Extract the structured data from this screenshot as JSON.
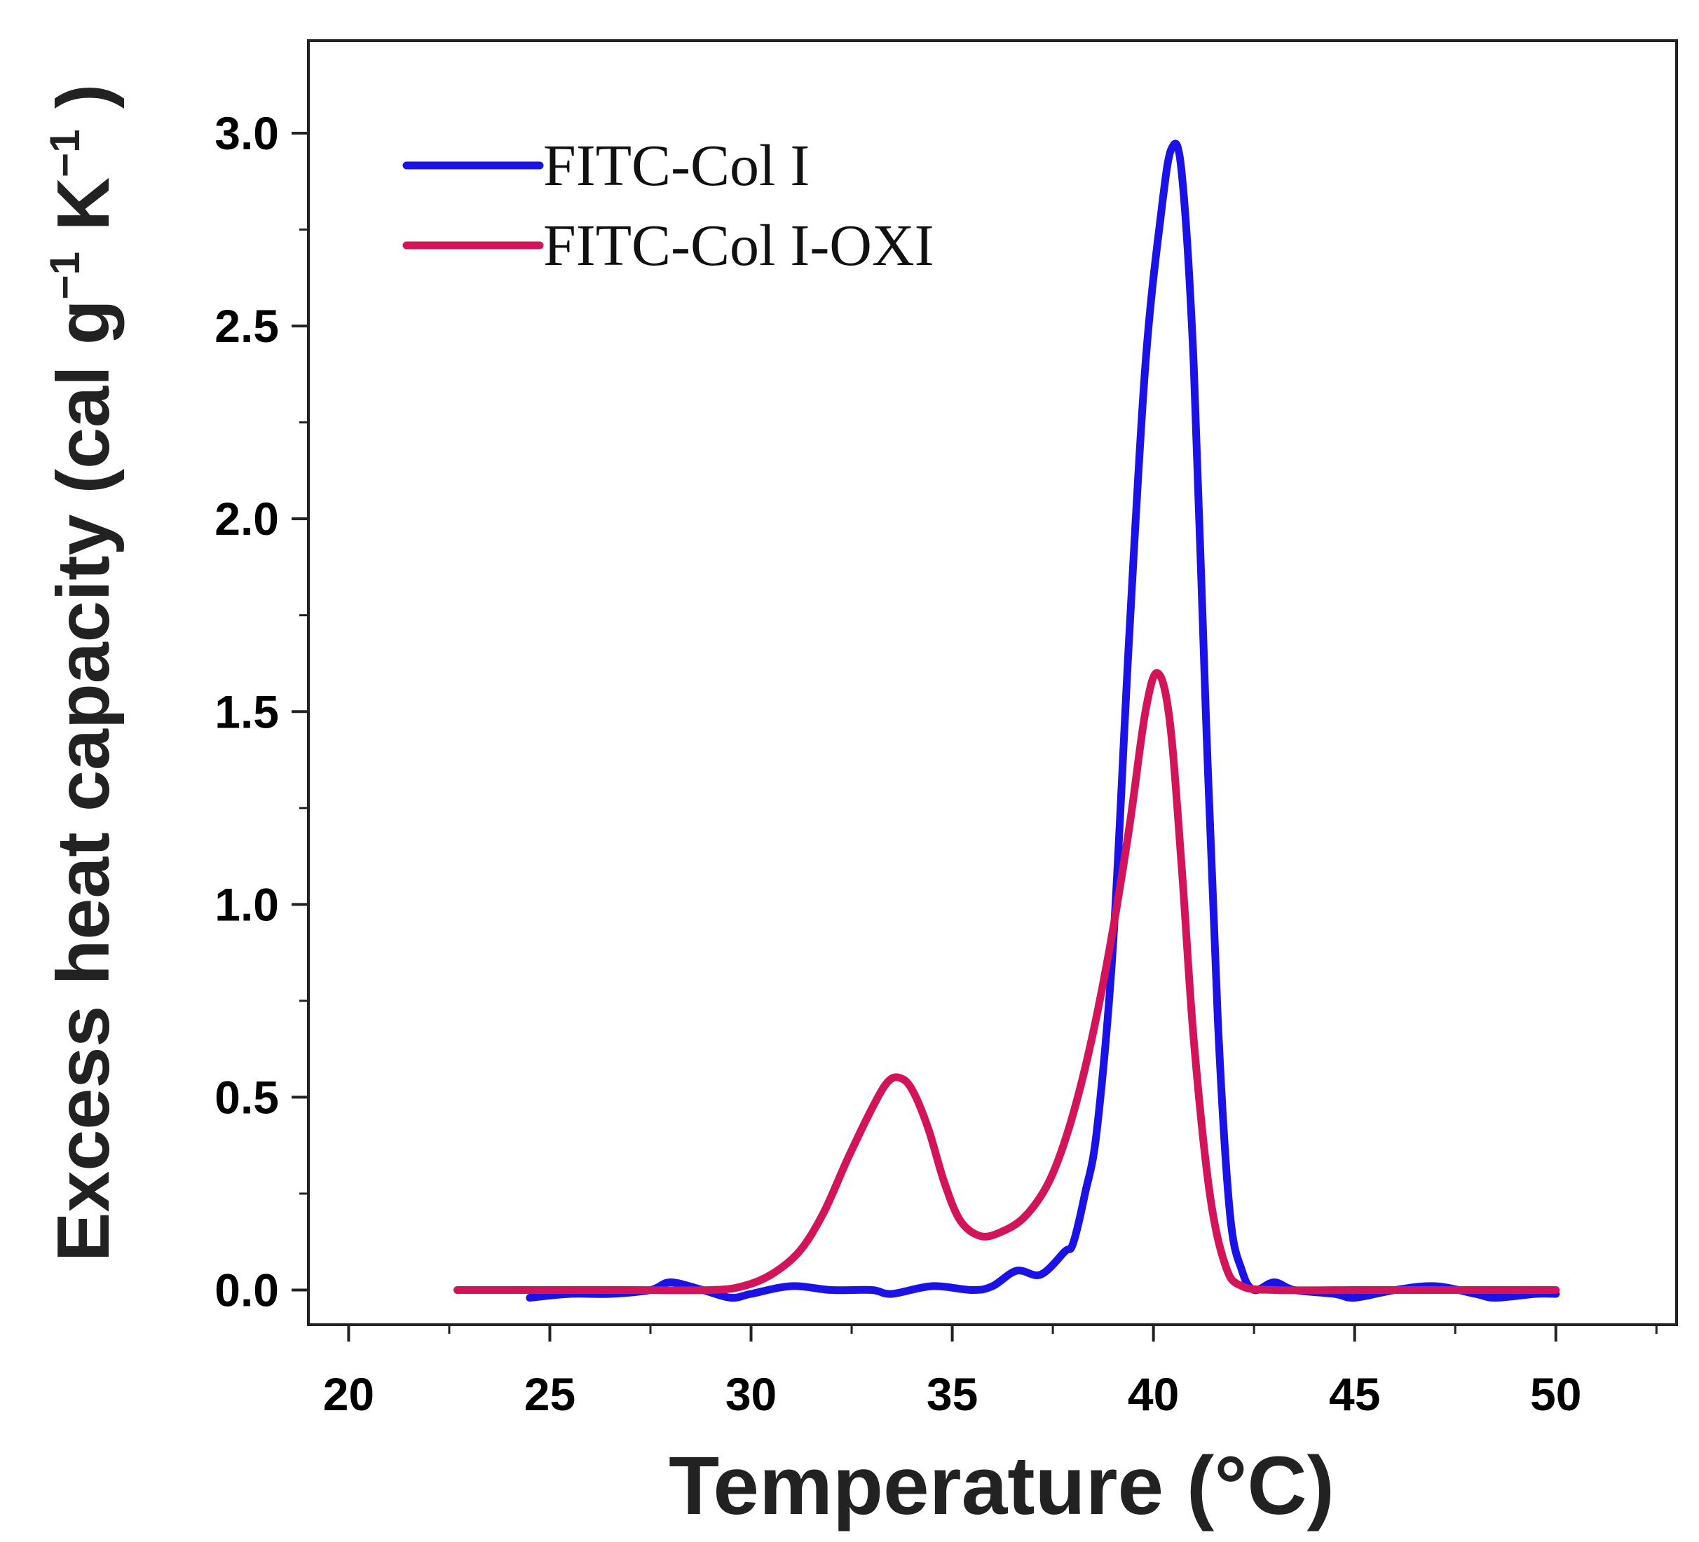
{
  "chart_data": {
    "type": "line",
    "title": "",
    "xlabel": "Temperature (°C)",
    "ylabel_parts": {
      "base": "Excess heat capacity (cal g",
      "exp1": "−1",
      "mid": " K",
      "exp2": "−1",
      "end": " )"
    },
    "xlim": [
      19,
      53
    ],
    "ylim": [
      -0.09,
      3.24
    ],
    "x_ticks": [
      20,
      25,
      30,
      35,
      40,
      45,
      50
    ],
    "x_tick_labels": [
      "20",
      "25",
      "30",
      "35",
      "40",
      "45",
      "50"
    ],
    "y_ticks": [
      0.0,
      0.5,
      1.0,
      1.5,
      2.0,
      2.5,
      3.0
    ],
    "y_tick_labels": [
      "0.0",
      "0.5",
      "1.0",
      "1.5",
      "2.0",
      "2.5",
      "3.0"
    ],
    "grid": false,
    "legend_position": "top-left",
    "series": [
      {
        "name": "FITC-Col I",
        "color": "#1a12e6",
        "points": [
          [
            24.5,
            -0.02
          ],
          [
            25.5,
            -0.01
          ],
          [
            26.5,
            -0.01
          ],
          [
            27.5,
            0.0
          ],
          [
            28.0,
            0.02
          ],
          [
            28.8,
            0.0
          ],
          [
            29.5,
            -0.02
          ],
          [
            30.0,
            -0.01
          ],
          [
            31.0,
            0.01
          ],
          [
            32.0,
            0.0
          ],
          [
            33.0,
            0.0
          ],
          [
            33.5,
            -0.01
          ],
          [
            34.5,
            0.01
          ],
          [
            35.5,
            0.0
          ],
          [
            36.0,
            0.01
          ],
          [
            36.6,
            0.05
          ],
          [
            37.2,
            0.04
          ],
          [
            37.8,
            0.1
          ],
          [
            38.0,
            0.12
          ],
          [
            38.3,
            0.25
          ],
          [
            38.6,
            0.42
          ],
          [
            39.0,
            0.9
          ],
          [
            39.4,
            1.7
          ],
          [
            39.8,
            2.4
          ],
          [
            40.2,
            2.8
          ],
          [
            40.45,
            2.96
          ],
          [
            40.7,
            2.9
          ],
          [
            41.0,
            2.4
          ],
          [
            41.3,
            1.5
          ],
          [
            41.6,
            0.7
          ],
          [
            41.9,
            0.2
          ],
          [
            42.2,
            0.05
          ],
          [
            42.5,
            0.0
          ],
          [
            43.0,
            0.02
          ],
          [
            43.5,
            0.0
          ],
          [
            44.5,
            -0.01
          ],
          [
            45.0,
            -0.02
          ],
          [
            46.0,
            0.0
          ],
          [
            47.0,
            0.01
          ],
          [
            48.0,
            -0.01
          ],
          [
            48.5,
            -0.02
          ],
          [
            49.5,
            -0.01
          ],
          [
            50.0,
            -0.01
          ]
        ]
      },
      {
        "name": "FITC-Col I-OXI",
        "color": "#d4145a",
        "points": [
          [
            22.7,
            0.0
          ],
          [
            25.0,
            0.0
          ],
          [
            27.0,
            0.0
          ],
          [
            29.0,
            0.0
          ],
          [
            29.8,
            0.01
          ],
          [
            30.5,
            0.04
          ],
          [
            31.2,
            0.1
          ],
          [
            31.8,
            0.2
          ],
          [
            32.4,
            0.34
          ],
          [
            33.0,
            0.47
          ],
          [
            33.4,
            0.54
          ],
          [
            33.7,
            0.55
          ],
          [
            34.0,
            0.52
          ],
          [
            34.4,
            0.42
          ],
          [
            34.8,
            0.28
          ],
          [
            35.2,
            0.18
          ],
          [
            35.7,
            0.14
          ],
          [
            36.2,
            0.15
          ],
          [
            36.8,
            0.19
          ],
          [
            37.4,
            0.28
          ],
          [
            37.9,
            0.42
          ],
          [
            38.4,
            0.62
          ],
          [
            38.9,
            0.88
          ],
          [
            39.4,
            1.2
          ],
          [
            39.8,
            1.5
          ],
          [
            40.1,
            1.6
          ],
          [
            40.4,
            1.48
          ],
          [
            40.7,
            1.1
          ],
          [
            41.0,
            0.65
          ],
          [
            41.4,
            0.25
          ],
          [
            41.8,
            0.06
          ],
          [
            42.2,
            0.01
          ],
          [
            43.0,
            0.0
          ],
          [
            45.0,
            0.0
          ],
          [
            47.0,
            0.0
          ],
          [
            50.0,
            0.0
          ]
        ]
      }
    ]
  }
}
